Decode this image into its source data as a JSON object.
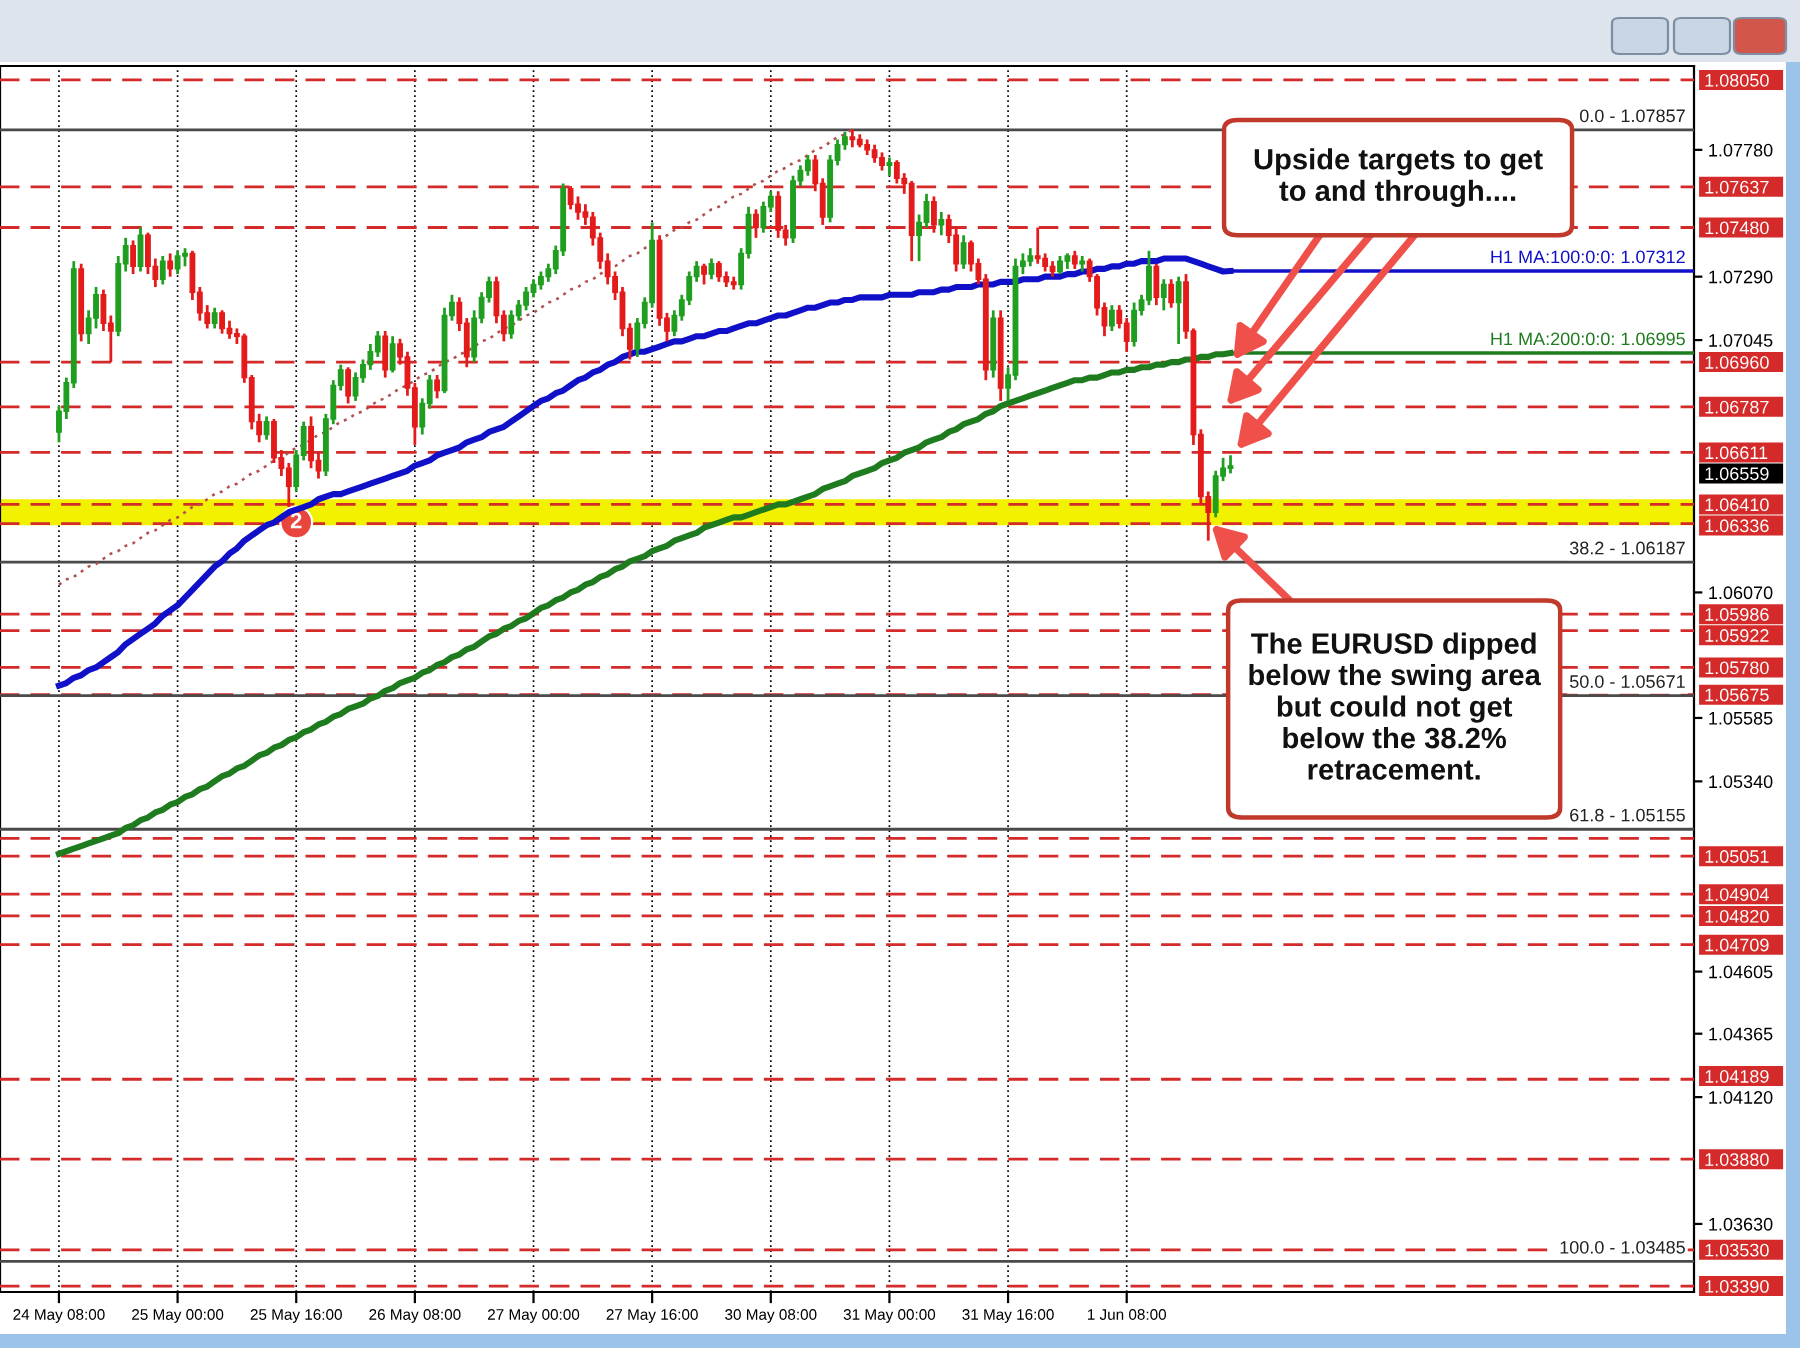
{
  "chart_data": {
    "type": "candlestick",
    "categories": [
      "24 May 08:00",
      null,
      null,
      null,
      null,
      null,
      null,
      null,
      null,
      null,
      null,
      null,
      null,
      null,
      null,
      null,
      "25 May 00:00",
      null,
      null,
      null,
      null,
      null,
      null,
      null,
      null,
      null,
      null,
      null,
      null,
      null,
      null,
      null,
      "25 May 16:00",
      null,
      null,
      null,
      null,
      null,
      null,
      null,
      null,
      null,
      null,
      null,
      null,
      null,
      null,
      null,
      "26 May 08:00",
      null,
      null,
      null,
      null,
      null,
      null,
      null,
      null,
      null,
      null,
      null,
      null,
      null,
      null,
      null,
      "27 May 00:00",
      null,
      null,
      null,
      null,
      null,
      null,
      null,
      null,
      null,
      null,
      null,
      null,
      null,
      null,
      null,
      "27 May 16:00",
      null,
      null,
      null,
      null,
      null,
      null,
      null,
      null,
      null,
      null,
      null,
      null,
      null,
      null,
      null,
      "30 May 08:00",
      null,
      null,
      null,
      null,
      null,
      null,
      null,
      null,
      null,
      null,
      null,
      null,
      null,
      null,
      null,
      "31 May 00:00",
      null,
      null,
      null,
      null,
      null,
      null,
      null,
      null,
      null,
      null,
      null,
      null,
      null,
      null,
      null,
      "31 May 16:00",
      null,
      null,
      null,
      null,
      null,
      null,
      null,
      null,
      null,
      null,
      null,
      null,
      null,
      null,
      null,
      "1 Jun 08:00",
      null,
      null,
      null,
      null,
      null,
      null,
      null,
      null,
      null,
      null,
      null,
      null,
      null,
      null
    ],
    "ohlc": [
      [
        1.0669,
        1.0679,
        1.0665,
        1.0677
      ],
      [
        1.0677,
        1.069,
        1.0674,
        1.0688
      ],
      [
        1.0688,
        1.0735,
        1.0686,
        1.0732
      ],
      [
        1.0732,
        1.0734,
        1.0704,
        1.0707
      ],
      [
        1.0707,
        1.0716,
        1.0703,
        1.0713
      ],
      [
        1.0713,
        1.0725,
        1.0709,
        1.0722
      ],
      [
        1.0722,
        1.0724,
        1.0708,
        1.0711
      ],
      [
        1.0711,
        1.0714,
        1.0696,
        1.0708
      ],
      [
        1.0708,
        1.0737,
        1.0706,
        1.0734
      ],
      [
        1.0734,
        1.0744,
        1.0731,
        1.0741
      ],
      [
        1.0741,
        1.0743,
        1.073,
        1.0733
      ],
      [
        1.0733,
        1.0748,
        1.0731,
        1.0745
      ],
      [
        1.0745,
        1.0746,
        1.073,
        1.0733
      ],
      [
        1.0733,
        1.0736,
        1.0725,
        1.0728
      ],
      [
        1.0728,
        1.0737,
        1.0726,
        1.0735
      ],
      [
        1.0735,
        1.0738,
        1.0729,
        1.0732
      ],
      [
        1.0732,
        1.0739,
        1.073,
        1.0737
      ],
      [
        1.0737,
        1.074,
        1.0733,
        1.0738
      ],
      [
        1.0738,
        1.0739,
        1.072,
        1.0723
      ],
      [
        1.0723,
        1.0725,
        1.0712,
        1.0715
      ],
      [
        1.0715,
        1.0718,
        1.0709,
        1.0711
      ],
      [
        1.0711,
        1.0717,
        1.0709,
        1.0715
      ],
      [
        1.0715,
        1.0716,
        1.0707,
        1.0709
      ],
      [
        1.0709,
        1.0712,
        1.0705,
        1.0707
      ],
      [
        1.0707,
        1.0709,
        1.0703,
        1.0706
      ],
      [
        1.0706,
        1.0707,
        1.0688,
        1.069
      ],
      [
        1.069,
        1.0691,
        1.067,
        1.0673
      ],
      [
        1.0673,
        1.0676,
        1.0665,
        1.0668
      ],
      [
        1.0668,
        1.0675,
        1.0666,
        1.0673
      ],
      [
        1.0673,
        1.0674,
        1.0657,
        1.0659
      ],
      [
        1.0659,
        1.0662,
        1.0652,
        1.0655
      ],
      [
        1.0655,
        1.0657,
        1.064,
        1.0648
      ],
      [
        1.0648,
        1.0662,
        1.0646,
        1.066
      ],
      [
        1.066,
        1.0673,
        1.0658,
        1.0671
      ],
      [
        1.0671,
        1.0675,
        1.0655,
        1.0658
      ],
      [
        1.0658,
        1.0661,
        1.0651,
        1.0654
      ],
      [
        1.0654,
        1.0676,
        1.0652,
        1.0674
      ],
      [
        1.0674,
        1.0689,
        1.0672,
        1.0687
      ],
      [
        1.0687,
        1.0695,
        1.0685,
        1.0693
      ],
      [
        1.0693,
        1.0694,
        1.068,
        1.0683
      ],
      [
        1.0683,
        1.0692,
        1.0681,
        1.069
      ],
      [
        1.069,
        1.0697,
        1.0688,
        1.0695
      ],
      [
        1.0695,
        1.0703,
        1.0693,
        1.07
      ],
      [
        1.07,
        1.0708,
        1.0698,
        1.0706
      ],
      [
        1.0706,
        1.0708,
        1.069,
        1.0693
      ],
      [
        1.0693,
        1.0706,
        1.0692,
        1.0703
      ],
      [
        1.0703,
        1.0705,
        1.0695,
        1.0698
      ],
      [
        1.0698,
        1.07,
        1.0683,
        1.0686
      ],
      [
        1.0686,
        1.0688,
        1.0664,
        1.0671
      ],
      [
        1.0671,
        1.0682,
        1.0668,
        1.068
      ],
      [
        1.068,
        1.0691,
        1.0678,
        1.0689
      ],
      [
        1.0689,
        1.0691,
        1.0682,
        1.0685
      ],
      [
        1.0685,
        1.0717,
        1.0684,
        1.0714
      ],
      [
        1.0714,
        1.0722,
        1.0712,
        1.0719
      ],
      [
        1.0719,
        1.0721,
        1.0708,
        1.0711
      ],
      [
        1.0711,
        1.0713,
        1.0694,
        1.0698
      ],
      [
        1.0698,
        1.0716,
        1.0696,
        1.0713
      ],
      [
        1.0713,
        1.0723,
        1.0711,
        1.0721
      ],
      [
        1.0721,
        1.0729,
        1.0719,
        1.0727
      ],
      [
        1.0727,
        1.0729,
        1.0711,
        1.0714
      ],
      [
        1.0714,
        1.0716,
        1.0704,
        1.0707
      ],
      [
        1.0707,
        1.0716,
        1.0705,
        1.0714
      ],
      [
        1.0714,
        1.072,
        1.0712,
        1.0718
      ],
      [
        1.0718,
        1.0725,
        1.0716,
        1.0723
      ],
      [
        1.0723,
        1.0728,
        1.0721,
        1.0726
      ],
      [
        1.0726,
        1.0731,
        1.0724,
        1.0729
      ],
      [
        1.0729,
        1.0734,
        1.0727,
        1.0732
      ],
      [
        1.0732,
        1.0741,
        1.073,
        1.0739
      ],
      [
        1.0739,
        1.0765,
        1.0737,
        1.0763
      ],
      [
        1.0763,
        1.0764,
        1.0755,
        1.0757
      ],
      [
        1.0757,
        1.076,
        1.0751,
        1.0754
      ],
      [
        1.0754,
        1.0757,
        1.0749,
        1.0752
      ],
      [
        1.0752,
        1.0754,
        1.0741,
        1.0744
      ],
      [
        1.0744,
        1.0746,
        1.0732,
        1.0735
      ],
      [
        1.0735,
        1.0738,
        1.0726,
        1.0729
      ],
      [
        1.0729,
        1.0731,
        1.072,
        1.0723
      ],
      [
        1.0723,
        1.0725,
        1.0706,
        1.0709
      ],
      [
        1.0709,
        1.0711,
        1.0697,
        1.0701
      ],
      [
        1.0701,
        1.0713,
        1.0698,
        1.0711
      ],
      [
        1.0711,
        1.0721,
        1.0709,
        1.0719
      ],
      [
        1.0719,
        1.075,
        1.0717,
        1.0743
      ],
      [
        1.0743,
        1.0745,
        1.071,
        1.0713
      ],
      [
        1.0713,
        1.0715,
        1.0704,
        1.0708
      ],
      [
        1.0708,
        1.0716,
        1.0706,
        1.0714
      ],
      [
        1.0714,
        1.0722,
        1.0712,
        1.072
      ],
      [
        1.072,
        1.0731,
        1.0718,
        1.0729
      ],
      [
        1.0729,
        1.0735,
        1.0727,
        1.0733
      ],
      [
        1.0733,
        1.0734,
        1.0726,
        1.073
      ],
      [
        1.073,
        1.0736,
        1.0728,
        1.0734
      ],
      [
        1.0734,
        1.0735,
        1.0727,
        1.0729
      ],
      [
        1.0729,
        1.0731,
        1.0725,
        1.0727
      ],
      [
        1.0727,
        1.0729,
        1.0724,
        1.0726
      ],
      [
        1.0726,
        1.074,
        1.0724,
        1.0738
      ],
      [
        1.0738,
        1.0756,
        1.0736,
        1.0753
      ],
      [
        1.0753,
        1.0755,
        1.0744,
        1.0748
      ],
      [
        1.0748,
        1.0758,
        1.0746,
        1.0756
      ],
      [
        1.0756,
        1.0762,
        1.0754,
        1.076
      ],
      [
        1.076,
        1.0762,
        1.0744,
        1.0747
      ],
      [
        1.0747,
        1.0749,
        1.0741,
        1.0744
      ],
      [
        1.0744,
        1.0768,
        1.0742,
        1.0766
      ],
      [
        1.0766,
        1.0772,
        1.0764,
        1.077
      ],
      [
        1.077,
        1.0776,
        1.0768,
        1.0774
      ],
      [
        1.0774,
        1.0776,
        1.0762,
        1.0765
      ],
      [
        1.0765,
        1.0767,
        1.0749,
        1.0752
      ],
      [
        1.0752,
        1.0776,
        1.075,
        1.0774
      ],
      [
        1.0774,
        1.0782,
        1.0772,
        1.078
      ],
      [
        1.078,
        1.0785,
        1.0778,
        1.0783
      ],
      [
        1.0783,
        1.0786,
        1.0779,
        1.0782
      ],
      [
        1.0782,
        1.0784,
        1.0779,
        1.078
      ],
      [
        1.078,
        1.0782,
        1.0776,
        1.0778
      ],
      [
        1.0778,
        1.078,
        1.0773,
        1.0775
      ],
      [
        1.0775,
        1.0777,
        1.077,
        1.0772
      ],
      [
        1.0772,
        1.0775,
        1.0768,
        1.0773
      ],
      [
        1.0773,
        1.0774,
        1.0765,
        1.0767
      ],
      [
        1.0767,
        1.0769,
        1.0761,
        1.0765
      ],
      [
        1.0765,
        1.0766,
        1.0735,
        1.0745
      ],
      [
        1.0745,
        1.0753,
        1.0735,
        1.075
      ],
      [
        1.075,
        1.0761,
        1.0748,
        1.0758
      ],
      [
        1.0758,
        1.076,
        1.0746,
        1.0749
      ],
      [
        1.0749,
        1.0754,
        1.0745,
        1.0751
      ],
      [
        1.0751,
        1.0753,
        1.0742,
        1.0745
      ],
      [
        1.0745,
        1.0748,
        1.0731,
        1.0734
      ],
      [
        1.0734,
        1.0745,
        1.0732,
        1.0742
      ],
      [
        1.0742,
        1.0743,
        1.0731,
        1.0734
      ],
      [
        1.0734,
        1.0736,
        1.0726,
        1.0728
      ],
      [
        1.0728,
        1.073,
        1.0689,
        1.0693
      ],
      [
        1.0693,
        1.0716,
        1.069,
        1.0713
      ],
      [
        1.0713,
        1.0716,
        1.0681,
        1.0686
      ],
      [
        1.0686,
        1.0694,
        1.0681,
        1.0691
      ],
      [
        1.0691,
        1.0736,
        1.0689,
        1.0733
      ],
      [
        1.0733,
        1.0738,
        1.073,
        1.0735
      ],
      [
        1.0735,
        1.074,
        1.0733,
        1.0737
      ],
      [
        1.0737,
        1.0748,
        1.0734,
        1.0736
      ],
      [
        1.0736,
        1.0738,
        1.0731,
        1.0733
      ],
      [
        1.0733,
        1.0735,
        1.0729,
        1.0731
      ],
      [
        1.0731,
        1.0737,
        1.073,
        1.0735
      ],
      [
        1.0735,
        1.0738,
        1.0732,
        1.0737
      ],
      [
        1.0737,
        1.0739,
        1.0732,
        1.0734
      ],
      [
        1.0734,
        1.0737,
        1.0731,
        1.0735
      ],
      [
        1.0735,
        1.0736,
        1.0727,
        1.0729
      ],
      [
        1.0729,
        1.073,
        1.0714,
        1.0717
      ],
      [
        1.0717,
        1.0719,
        1.0706,
        1.071
      ],
      [
        1.071,
        1.0718,
        1.0708,
        1.0716
      ],
      [
        1.0716,
        1.0718,
        1.0709,
        1.0711
      ],
      [
        1.0711,
        1.0713,
        1.07,
        1.0704
      ],
      [
        1.0704,
        1.0719,
        1.0702,
        1.0716
      ],
      [
        1.0716,
        1.0722,
        1.0714,
        1.072
      ],
      [
        1.072,
        1.0739,
        1.0718,
        1.0733
      ],
      [
        1.0733,
        1.0734,
        1.0718,
        1.0721
      ],
      [
        1.0721,
        1.0728,
        1.0716,
        1.0726
      ],
      [
        1.0726,
        1.0728,
        1.0717,
        1.0719
      ],
      [
        1.0719,
        1.0729,
        1.0703,
        1.0727
      ],
      [
        1.0727,
        1.073,
        1.0705,
        1.0708
      ],
      [
        1.0708,
        1.0709,
        1.0664,
        1.0668
      ],
      [
        1.0668,
        1.067,
        1.0641,
        1.0644
      ],
      [
        1.0644,
        1.0646,
        1.0627,
        1.0638
      ],
      [
        1.0638,
        1.0654,
        1.0636,
        1.0652
      ],
      [
        1.0652,
        1.0659,
        1.065,
        1.0655
      ],
      [
        1.0655,
        1.066,
        1.0653,
        1.06559
      ]
    ],
    "colors": [
      "#1f9e1f",
      "#1f9e1f",
      "#1f9e1f",
      "#e41b1b",
      "#1f9e1f",
      "#1f9e1f",
      "#e41b1b",
      "#e41b1b",
      "#1f9e1f",
      "#1f9e1f",
      "#e41b1b",
      "#1f9e1f",
      "#e41b1b",
      "#e41b1b",
      "#1f9e1f",
      "#e41b1b",
      "#1f9e1f",
      "#1f9e1f",
      "#e41b1b",
      "#e41b1b",
      "#e41b1b",
      "#1f9e1f",
      "#e41b1b",
      "#e41b1b",
      "#e41b1b",
      "#e41b1b",
      "#e41b1b",
      "#e41b1b",
      "#1f9e1f",
      "#e41b1b",
      "#e41b1b",
      "#e41b1b",
      "#1f9e1f",
      "#1f9e1f",
      "#e41b1b",
      "#e41b1b",
      "#1f9e1f",
      "#1f9e1f",
      "#1f9e1f",
      "#e41b1b",
      "#1f9e1f",
      "#1f9e1f",
      "#1f9e1f",
      "#1f9e1f",
      "#e41b1b",
      "#1f9e1f",
      "#e41b1b",
      "#e41b1b",
      "#e41b1b",
      "#1f9e1f",
      "#1f9e1f",
      "#e41b1b",
      "#1f9e1f",
      "#1f9e1f",
      "#e41b1b",
      "#e41b1b",
      "#1f9e1f",
      "#1f9e1f",
      "#1f9e1f",
      "#e41b1b",
      "#e41b1b",
      "#1f9e1f",
      "#1f9e1f",
      "#1f9e1f",
      "#1f9e1f",
      "#1f9e1f",
      "#1f9e1f",
      "#1f9e1f",
      "#1f9e1f",
      "#e41b1b",
      "#e41b1b",
      "#e41b1b",
      "#e41b1b",
      "#e41b1b",
      "#e41b1b",
      "#e41b1b",
      "#e41b1b",
      "#e41b1b",
      "#1f9e1f",
      "#1f9e1f",
      "#1f9e1f",
      "#e41b1b",
      "#e41b1b",
      "#1f9e1f",
      "#1f9e1f",
      "#1f9e1f",
      "#1f9e1f",
      "#e41b1b",
      "#1f9e1f",
      "#e41b1b",
      "#e41b1b",
      "#e41b1b",
      "#1f9e1f",
      "#1f9e1f",
      "#e41b1b",
      "#1f9e1f",
      "#1f9e1f",
      "#e41b1b",
      "#e41b1b",
      "#1f9e1f",
      "#1f9e1f",
      "#1f9e1f",
      "#e41b1b",
      "#e41b1b",
      "#1f9e1f",
      "#1f9e1f",
      "#1f9e1f",
      "#e41b1b",
      "#e41b1b",
      "#e41b1b",
      "#e41b1b",
      "#e41b1b",
      "#1f9e1f",
      "#e41b1b",
      "#e41b1b",
      "#e41b1b",
      "#1f9e1f",
      "#1f9e1f",
      "#e41b1b",
      "#1f9e1f",
      "#e41b1b",
      "#e41b1b",
      "#1f9e1f",
      "#e41b1b",
      "#e41b1b",
      "#e41b1b",
      "#1f9e1f",
      "#e41b1b",
      "#1f9e1f",
      "#1f9e1f",
      "#1f9e1f",
      "#1f9e1f",
      "#e41b1b",
      "#e41b1b",
      "#e41b1b",
      "#1f9e1f",
      "#1f9e1f",
      "#e41b1b",
      "#1f9e1f",
      "#e41b1b",
      "#e41b1b",
      "#e41b1b",
      "#1f9e1f",
      "#e41b1b",
      "#e41b1b",
      "#1f9e1f",
      "#1f9e1f",
      "#1f9e1f",
      "#e41b1b",
      "#1f9e1f",
      "#e41b1b",
      "#1f9e1f",
      "#e41b1b",
      "#e41b1b",
      "#e41b1b",
      "#e41b1b",
      "#1f9e1f",
      "#1f9e1f",
      "#1f9e1f"
    ],
    "series": [
      {
        "type": "line",
        "color": "#1010c8",
        "values": [
          1.0571,
          1.0572,
          1.0574,
          1.0575,
          1.0577,
          1.0578,
          1.058,
          1.0582,
          1.0584,
          1.0587,
          1.0589,
          1.0591,
          1.0593,
          1.0595,
          1.0598,
          1.06,
          1.0602,
          1.0605,
          1.0608,
          1.0611,
          1.0614,
          1.0617,
          1.0619,
          1.0622,
          1.0624,
          1.0627,
          1.0629,
          1.0631,
          1.0633,
          1.0634,
          1.0636,
          1.0638,
          1.0639,
          1.064,
          1.0641,
          1.0643,
          1.0644,
          1.0645,
          1.0645,
          1.0646,
          1.0647,
          1.0648,
          1.0649,
          1.065,
          1.0651,
          1.0652,
          1.0653,
          1.0654,
          1.0656,
          1.0657,
          1.0658,
          1.066,
          1.0661,
          1.0662,
          1.0663,
          1.0665,
          1.0666,
          1.0667,
          1.0669,
          1.067,
          1.0671,
          1.0673,
          1.0675,
          1.0677,
          1.0679,
          1.0681,
          1.0682,
          1.0684,
          1.0685,
          1.0687,
          1.0689,
          1.069,
          1.0692,
          1.0693,
          1.0695,
          1.0696,
          1.0698,
          1.0699,
          1.07,
          1.07,
          1.0701,
          1.0702,
          1.0703,
          1.0704,
          1.0704,
          1.0705,
          1.0706,
          1.0706,
          1.0707,
          1.0708,
          1.0708,
          1.0709,
          1.071,
          1.0711,
          1.0711,
          1.0712,
          1.0713,
          1.0714,
          1.0714,
          1.0715,
          1.0716,
          1.0717,
          1.0717,
          1.0718,
          1.0719,
          1.0719,
          1.072,
          1.072,
          1.0721,
          1.0721,
          1.0721,
          1.0721,
          1.0722,
          1.0722,
          1.0722,
          1.0722,
          1.0723,
          1.0723,
          1.0723,
          1.0724,
          1.0724,
          1.0725,
          1.0725,
          1.0725,
          1.0726,
          1.0726,
          1.0726,
          1.0727,
          1.0727,
          1.0727,
          1.0728,
          1.0728,
          1.0728,
          1.0729,
          1.0729,
          1.0729,
          1.073,
          1.073,
          1.0731,
          1.0731,
          1.0732,
          1.0732,
          1.0733,
          1.0733,
          1.0734,
          1.0734,
          1.0735,
          1.0735,
          1.0735,
          1.0736,
          1.0736,
          1.0736,
          1.0736,
          1.0735,
          1.0734,
          1.0733,
          1.0732,
          1.0731,
          1.07312
        ]
      },
      {
        "type": "line",
        "color": "#1e7b1e",
        "values": [
          1.0506,
          1.0507,
          1.0508,
          1.0509,
          1.051,
          1.0511,
          1.0512,
          1.0513,
          1.0514,
          1.0516,
          1.0517,
          1.0519,
          1.052,
          1.0522,
          1.0523,
          1.0525,
          1.0526,
          1.0528,
          1.0529,
          1.0531,
          1.0532,
          1.0534,
          1.0536,
          1.0537,
          1.0539,
          1.054,
          1.0542,
          1.0544,
          1.0545,
          1.0547,
          1.0548,
          1.055,
          1.0551,
          1.0553,
          1.0554,
          1.0556,
          1.0557,
          1.0559,
          1.056,
          1.0562,
          1.0563,
          1.0564,
          1.0566,
          1.0567,
          1.0569,
          1.057,
          1.0572,
          1.0573,
          1.0574,
          1.0576,
          1.0577,
          1.0579,
          1.058,
          1.0582,
          1.0583,
          1.0585,
          1.0586,
          1.0588,
          1.059,
          1.0591,
          1.0593,
          1.0594,
          1.0596,
          1.0597,
          1.0599,
          1.0601,
          1.0602,
          1.0604,
          1.0605,
          1.0607,
          1.0608,
          1.061,
          1.0611,
          1.0613,
          1.0614,
          1.0616,
          1.0617,
          1.0619,
          1.062,
          1.0621,
          1.0623,
          1.0624,
          1.0625,
          1.0627,
          1.0628,
          1.0629,
          1.063,
          1.0632,
          1.0633,
          1.0634,
          1.0635,
          1.0636,
          1.0636,
          1.0637,
          1.0638,
          1.0639,
          1.064,
          1.0641,
          1.0641,
          1.0642,
          1.0643,
          1.0644,
          1.0645,
          1.0647,
          1.0648,
          1.0649,
          1.065,
          1.0652,
          1.0653,
          1.0654,
          1.0655,
          1.0657,
          1.0658,
          1.0659,
          1.0661,
          1.0662,
          1.0663,
          1.0665,
          1.0666,
          1.0667,
          1.0669,
          1.067,
          1.0672,
          1.0673,
          1.0674,
          1.0676,
          1.0677,
          1.0679,
          1.068,
          1.0681,
          1.0682,
          1.0683,
          1.0684,
          1.0685,
          1.0686,
          1.0687,
          1.0688,
          1.0689,
          1.0689,
          1.069,
          1.069,
          1.0691,
          1.0692,
          1.0692,
          1.0693,
          1.0693,
          1.0694,
          1.0694,
          1.0695,
          1.0695,
          1.0696,
          1.0696,
          1.0697,
          1.0697,
          1.0698,
          1.0698,
          1.0699,
          1.0699,
          1.06995
        ]
      },
      {
        "type": "line",
        "color": "#b05050",
        "line_style": "dotted",
        "values": [
          1.061,
          1.0612,
          1.0613,
          1.0615,
          1.0617,
          1.0618,
          1.062,
          1.0622,
          1.0623,
          1.0625,
          1.0626,
          1.0628,
          1.063,
          1.0631,
          1.0633,
          1.0635,
          1.0636,
          1.0638,
          1.064,
          1.0641,
          1.0643,
          1.0645,
          1.0646,
          1.0648,
          1.0649,
          1.0651,
          1.0653,
          1.0654,
          1.0656,
          1.0658,
          1.0659,
          1.0661,
          1.0663,
          1.0664,
          1.0666,
          1.0668,
          1.0669,
          1.0671,
          1.0673,
          1.0674,
          1.0676,
          1.0677,
          1.0679,
          1.0681,
          1.0682,
          1.0684,
          1.0686,
          1.0687,
          1.0689,
          1.0691,
          1.0692,
          1.0694,
          1.0696,
          1.0697,
          1.0699,
          1.07,
          1.0702,
          1.0704,
          1.0705,
          1.0707,
          1.0709,
          1.071,
          1.0712,
          1.0714,
          1.0715,
          1.0717,
          1.0719,
          1.072,
          1.0722,
          1.0724,
          1.0725,
          1.0727,
          1.0728,
          1.073,
          1.0732,
          1.0733,
          1.0735,
          1.0737,
          1.0738,
          1.074,
          1.0742,
          1.0743,
          1.0745,
          1.0747,
          1.0748,
          1.075,
          1.0751,
          1.0753,
          1.0755,
          1.0756,
          1.0758,
          1.076,
          1.0761,
          1.0763,
          1.0765,
          1.0766,
          1.0768,
          1.077,
          1.0771,
          1.0773,
          1.0774,
          1.0776,
          1.0778,
          1.0779,
          1.0781,
          1.0783,
          1.0784,
          1.0786,
          null,
          null,
          null,
          null,
          null,
          null,
          null,
          null,
          null,
          null,
          null,
          null,
          null,
          null,
          null,
          null,
          null,
          null,
          null,
          null,
          null,
          null,
          null,
          null,
          null,
          null,
          null,
          null,
          null,
          null,
          null,
          null,
          null,
          null,
          null,
          null,
          null,
          null,
          null,
          null,
          null,
          null,
          null,
          null,
          null,
          null,
          null,
          null,
          null,
          null,
          null
        ]
      }
    ],
    "ylim": [
      1.03367,
      1.08104
    ],
    "yticks": [
      {
        "value": 1.0778,
        "label": "1.07780"
      },
      {
        "value": 1.0729,
        "label": "1.07290"
      },
      {
        "value": 1.07045,
        "label": "1.07045"
      },
      {
        "value": 1.0607,
        "label": "1.06070"
      },
      {
        "value": 1.05585,
        "label": "1.05585"
      },
      {
        "value": 1.0534,
        "label": "1.05340"
      },
      {
        "value": 1.04605,
        "label": "1.04605"
      },
      {
        "value": 1.04365,
        "label": "1.04365"
      },
      {
        "value": 1.0412,
        "label": "1.04120"
      },
      {
        "value": 1.0363,
        "label": "1.03630"
      }
    ],
    "grid": "x",
    "bands": [
      {
        "axis": "y",
        "from": 1.0633,
        "to": 1.0643,
        "color": "#f2f200"
      }
    ],
    "ref_lines": [
      {
        "axis": "y",
        "value": 1.0805,
        "label": "1.08050",
        "color": "#d42a2a",
        "line_style": "dashed"
      },
      {
        "axis": "y",
        "value": 1.07637,
        "label": "1.07637",
        "color": "#d42a2a",
        "line_style": "dashed"
      },
      {
        "axis": "y",
        "value": 1.0748,
        "label": "1.07480",
        "color": "#d42a2a",
        "line_style": "dashed"
      },
      {
        "axis": "y",
        "value": 1.0696,
        "label": "1.06960",
        "color": "#d42a2a",
        "line_style": "dashed"
      },
      {
        "axis": "y",
        "value": 1.06787,
        "label": "1.06787",
        "color": "#d42a2a",
        "line_style": "dashed"
      },
      {
        "axis": "y",
        "value": 1.06611,
        "label": "1.06611",
        "color": "#d42a2a",
        "line_style": "dashed"
      },
      {
        "axis": "y",
        "value": 1.0641,
        "label": "1.06410",
        "color": "#d42a2a",
        "line_style": "dashed"
      },
      {
        "axis": "y",
        "value": 1.06336,
        "label": "1.06336",
        "color": "#d42a2a",
        "line_style": "dashed"
      },
      {
        "axis": "y",
        "value": 1.05986,
        "label": "1.05986",
        "color": "#d42a2a",
        "line_style": "dashed"
      },
      {
        "axis": "y",
        "value": 1.05922,
        "label": "1.05922",
        "color": "#d42a2a",
        "line_style": "dashed"
      },
      {
        "axis": "y",
        "value": 1.0578,
        "label": "1.05780",
        "color": "#d42a2a",
        "line_style": "dashed"
      },
      {
        "axis": "y",
        "value": 1.05675,
        "label": "1.05675",
        "color": "#d42a2a",
        "line_style": "dashed"
      },
      {
        "axis": "y",
        "value": 1.0512,
        "label": null,
        "color": "#d42a2a",
        "line_style": "dashed"
      },
      {
        "axis": "y",
        "value": 1.05051,
        "label": "1.05051",
        "color": "#d42a2a",
        "line_style": "dashed"
      },
      {
        "axis": "y",
        "value": 1.04904,
        "label": "1.04904",
        "color": "#d42a2a",
        "line_style": "dashed"
      },
      {
        "axis": "y",
        "value": 1.0482,
        "label": "1.04820",
        "color": "#d42a2a",
        "line_style": "dashed"
      },
      {
        "axis": "y",
        "value": 1.04709,
        "label": "1.04709",
        "color": "#d42a2a",
        "line_style": "dashed"
      },
      {
        "axis": "y",
        "value": 1.04189,
        "label": "1.04189",
        "color": "#d42a2a",
        "line_style": "dashed"
      },
      {
        "axis": "y",
        "value": 1.0388,
        "label": "1.03880",
        "color": "#d42a2a",
        "line_style": "dashed"
      },
      {
        "axis": "y",
        "value": 1.0353,
        "label": "1.03530",
        "color": "#d42a2a",
        "line_style": "dashed"
      },
      {
        "axis": "y",
        "value": 1.0339,
        "label": "1.03390",
        "color": "#d42a2a",
        "line_style": "dashed"
      },
      {
        "axis": "y",
        "value": 1.07857,
        "color": "#4a4a4a",
        "line_style": "solid"
      },
      {
        "axis": "y",
        "value": 1.06187,
        "color": "#4a4a4a",
        "line_style": "solid"
      },
      {
        "axis": "y",
        "value": 1.05671,
        "color": "#4a4a4a",
        "line_style": "solid"
      },
      {
        "axis": "y",
        "value": 1.05155,
        "color": "#4a4a4a",
        "line_style": "solid"
      },
      {
        "axis": "y",
        "value": 1.03485,
        "color": "#4a4a4a",
        "line_style": "solid"
      },
      {
        "axis": "y",
        "value": 1.07312,
        "label": "H1 MA:100:0:0: 1.07312",
        "color": "#1010c8",
        "line_style": "solid"
      },
      {
        "axis": "y",
        "value": 1.06995,
        "label": "H1 MA:200:0:0: 1.06995",
        "color": "#1e7b1e",
        "line_style": "solid"
      }
    ],
    "annotations": [
      "Upside targets to get\nto and through....",
      "The EURUSD dipped\nbelow the swing area\nbut could not get\nbelow the 38.2%\nretracement.",
      "1.06559",
      {
        "text": "2",
        "x": "25 May 16:00",
        "y": 1.0634
      },
      {
        "text": "0.0 - 1.07857",
        "y": 1.07857
      },
      {
        "text": "38.2 - 1.06187",
        "y": 1.06187
      },
      {
        "text": "50.0 - 1.05671",
        "y": 1.05671
      },
      {
        "text": "61.8 - 1.05155",
        "y": 1.05155
      },
      {
        "text": "100.0 - 1.03485",
        "y": 1.03485
      }
    ]
  }
}
